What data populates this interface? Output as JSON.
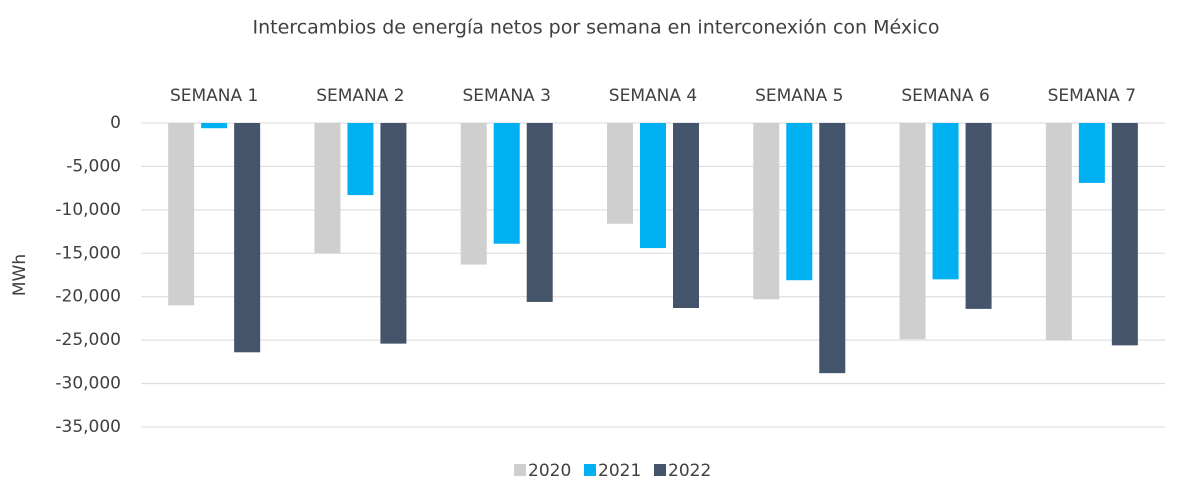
{
  "chart_data": {
    "type": "bar",
    "title": "Intercambios de energía netos por semana en interconexión con México",
    "y_label": "MWh",
    "categories": [
      "SEMANA 1",
      "SEMANA 2",
      "SEMANA 3",
      "SEMANA 4",
      "SEMANA 5",
      "SEMANA 6",
      "SEMANA 7"
    ],
    "series": [
      {
        "name": "2020",
        "color": "#d0cfcf",
        "values": [
          -21000,
          -15000,
          -16300,
          -11600,
          -20300,
          -24900,
          -25000
        ]
      },
      {
        "name": "2021",
        "color": "#00b0f0",
        "values": [
          -600,
          -8300,
          -13900,
          -14400,
          -18100,
          -18000,
          -6900
        ]
      },
      {
        "name": "2022",
        "color": "#44546a",
        "values": [
          -26400,
          -25400,
          -20600,
          -21300,
          -28800,
          -21400,
          -25600
        ]
      }
    ],
    "ylim": [
      -35000,
      0
    ],
    "yticks": [
      0,
      {
        "value": -5000,
        "label": "-5,000"
      },
      {
        "value": -10000,
        "label": "-10,000"
      },
      {
        "value": -15000,
        "label": "-15,000"
      },
      {
        "value": -20000,
        "label": "-20,000"
      },
      {
        "value": -25000,
        "label": "-25,000"
      },
      {
        "value": -30000,
        "label": "-30,000"
      },
      {
        "value": -35000,
        "label": "-35,000"
      }
    ],
    "grid": true,
    "legend": "bottom"
  }
}
